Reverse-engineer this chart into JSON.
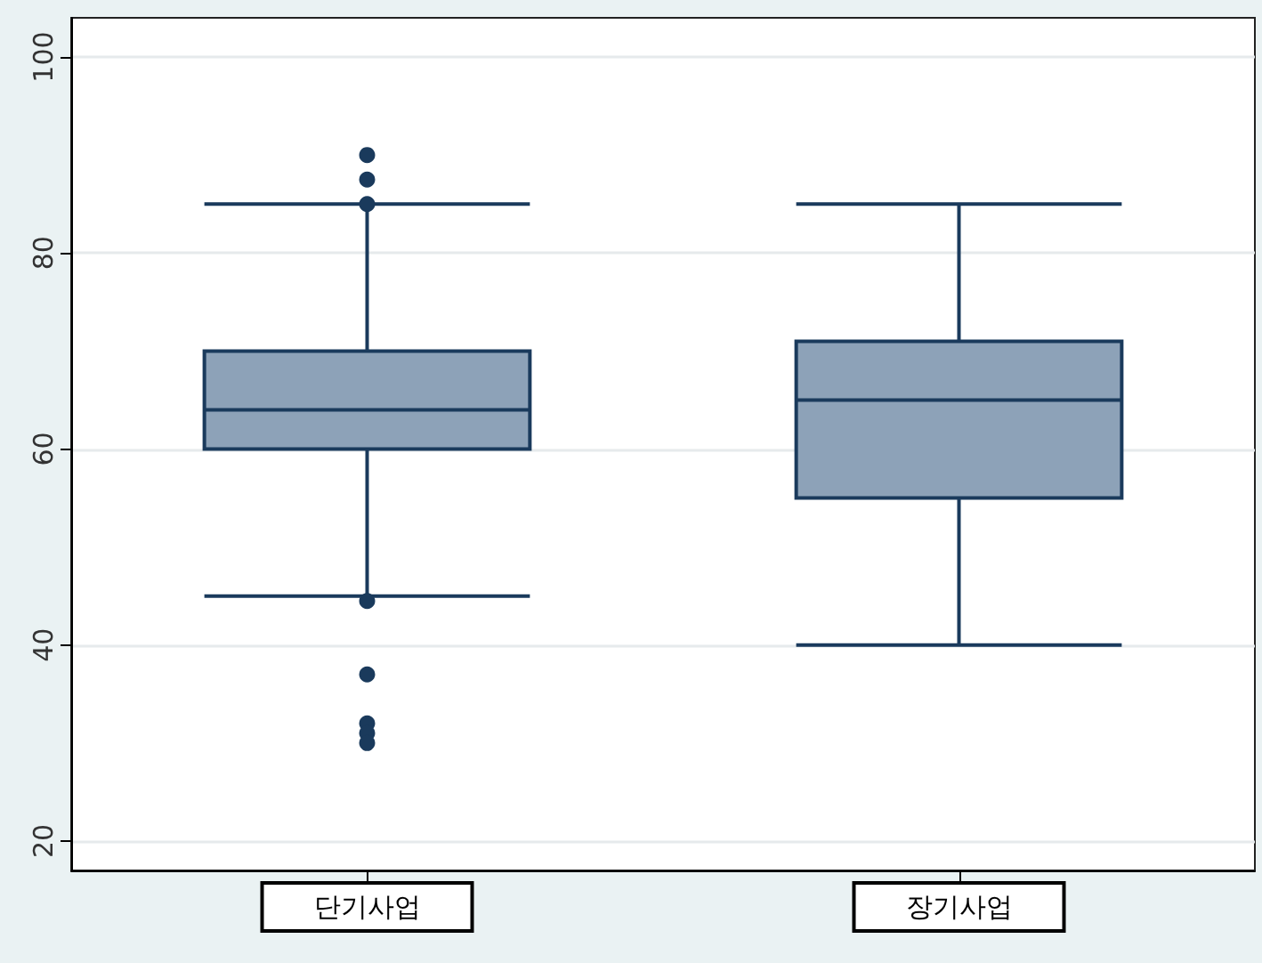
{
  "chart_data": {
    "type": "box",
    "categories": [
      "단기사업",
      "장기사업"
    ],
    "boxes": [
      {
        "low": 45,
        "q1": 60,
        "median": 64,
        "q3": 70,
        "high": 85,
        "outliers": [
          90,
          87.5,
          85,
          44.5,
          37,
          32,
          31,
          30
        ]
      },
      {
        "low": 40,
        "q1": 55,
        "median": 65,
        "q3": 71,
        "high": 85
      }
    ],
    "color": "#8da2b8",
    "ylim": [
      17,
      104
    ],
    "yticks": [
      20,
      40,
      60,
      80,
      100
    ],
    "grid": "y"
  }
}
